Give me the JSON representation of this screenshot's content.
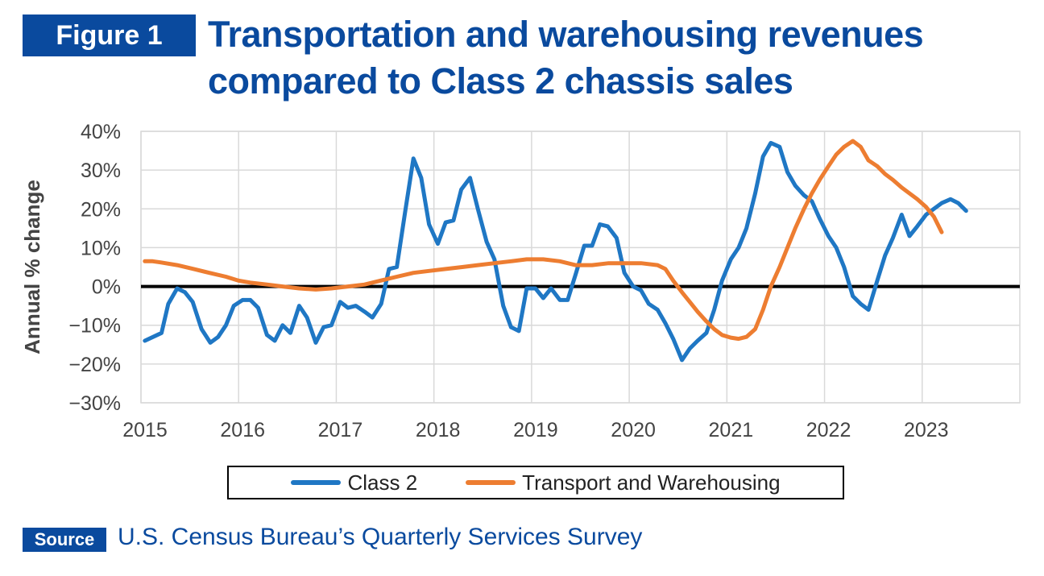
{
  "figure_label": "Figure 1",
  "title_line1": "Transportation and warehousing revenues",
  "title_line2": "compared to Class 2 chassis sales",
  "source_label": "Source",
  "source_text": "U.S. Census Bureau’s Quarterly Services Survey",
  "colors": {
    "brand": "#0a4a9e",
    "class2": "#1f77c4",
    "transport": "#ed7d31",
    "zero_line": "#000000",
    "grid": "#d9d9d9"
  },
  "chart_data": {
    "type": "line",
    "title": "",
    "xlabel": "",
    "ylabel": "Annual % change",
    "xlim": [
      2015,
      2024
    ],
    "ylim": [
      -30,
      40
    ],
    "y_ticks": [
      40,
      30,
      20,
      10,
      0,
      -10,
      -20,
      -30
    ],
    "y_tick_labels": [
      "40%",
      "30%",
      "20%",
      "10%",
      "0%",
      "−10%",
      "−20%",
      "−30%"
    ],
    "x_ticks": [
      2015,
      2016,
      2017,
      2018,
      2019,
      2020,
      2021,
      2022,
      2023
    ],
    "x_tick_labels": [
      "2015",
      "2016",
      "2017",
      "2018",
      "2019",
      "2020",
      "2021",
      "2022",
      "2023"
    ],
    "grid": true,
    "legend_position": "bottom",
    "series": [
      {
        "name": "Class 2",
        "color": "#1f77c4",
        "points": [
          [
            2015.04,
            -14
          ],
          [
            2015.21,
            -12
          ],
          [
            2015.28,
            -4.5
          ],
          [
            2015.37,
            -0.5
          ],
          [
            2015.45,
            -1.5
          ],
          [
            2015.53,
            -4
          ],
          [
            2015.62,
            -11
          ],
          [
            2015.71,
            -14.5
          ],
          [
            2015.79,
            -13
          ],
          [
            2015.87,
            -10
          ],
          [
            2015.95,
            -5
          ],
          [
            2016.04,
            -3.5
          ],
          [
            2016.12,
            -3.5
          ],
          [
            2016.2,
            -5.5
          ],
          [
            2016.29,
            -12.5
          ],
          [
            2016.37,
            -14
          ],
          [
            2016.45,
            -10
          ],
          [
            2016.53,
            -12
          ],
          [
            2016.62,
            -5
          ],
          [
            2016.7,
            -8
          ],
          [
            2016.79,
            -14.5
          ],
          [
            2016.87,
            -10.5
          ],
          [
            2016.95,
            -10
          ],
          [
            2017.04,
            -4
          ],
          [
            2017.12,
            -5.5
          ],
          [
            2017.2,
            -5
          ],
          [
            2017.29,
            -6.5
          ],
          [
            2017.37,
            -8
          ],
          [
            2017.46,
            -4.5
          ],
          [
            2017.54,
            4.5
          ],
          [
            2017.62,
            5
          ],
          [
            2017.71,
            20
          ],
          [
            2017.79,
            33
          ],
          [
            2017.87,
            28
          ],
          [
            2017.95,
            16
          ],
          [
            2018.04,
            11
          ],
          [
            2018.12,
            16.5
          ],
          [
            2018.2,
            17
          ],
          [
            2018.28,
            25
          ],
          [
            2018.37,
            28
          ],
          [
            2018.45,
            20
          ],
          [
            2018.54,
            11.5
          ],
          [
            2018.62,
            7
          ],
          [
            2018.71,
            -5
          ],
          [
            2018.79,
            -10.5
          ],
          [
            2018.87,
            -11.5
          ],
          [
            2018.95,
            -0.5
          ],
          [
            2019.04,
            -0.5
          ],
          [
            2019.12,
            -3
          ],
          [
            2019.2,
            -0.5
          ],
          [
            2019.29,
            -3.5
          ],
          [
            2019.37,
            -3.5
          ],
          [
            2019.45,
            3
          ],
          [
            2019.54,
            10.5
          ],
          [
            2019.62,
            10.5
          ],
          [
            2019.7,
            16
          ],
          [
            2019.78,
            15.5
          ],
          [
            2019.87,
            12.5
          ],
          [
            2019.95,
            3.5
          ],
          [
            2020.04,
            0
          ],
          [
            2020.12,
            -1
          ],
          [
            2020.2,
            -4.5
          ],
          [
            2020.29,
            -6
          ],
          [
            2020.37,
            -9.5
          ],
          [
            2020.45,
            -13.5
          ],
          [
            2020.54,
            -19
          ],
          [
            2020.62,
            -16
          ],
          [
            2020.7,
            -14
          ],
          [
            2020.79,
            -12
          ],
          [
            2020.87,
            -6
          ],
          [
            2020.95,
            1.5
          ],
          [
            2021.04,
            7
          ],
          [
            2021.12,
            10
          ],
          [
            2021.2,
            15
          ],
          [
            2021.29,
            24
          ],
          [
            2021.37,
            33.5
          ],
          [
            2021.45,
            37
          ],
          [
            2021.54,
            36
          ],
          [
            2021.62,
            29.5
          ],
          [
            2021.7,
            26
          ],
          [
            2021.79,
            23.5
          ],
          [
            2021.87,
            22
          ],
          [
            2021.95,
            17.5
          ],
          [
            2022.04,
            13
          ],
          [
            2022.12,
            10
          ],
          [
            2022.2,
            5
          ],
          [
            2022.29,
            -2.5
          ],
          [
            2022.37,
            -4.5
          ],
          [
            2022.45,
            -6
          ],
          [
            2022.54,
            1.5
          ],
          [
            2022.62,
            8
          ],
          [
            2022.7,
            12.5
          ],
          [
            2022.79,
            18.5
          ],
          [
            2022.87,
            13
          ],
          [
            2022.95,
            15.5
          ],
          [
            2023.04,
            18.5
          ],
          [
            2023.12,
            20
          ],
          [
            2023.2,
            21.5
          ],
          [
            2023.29,
            22.5
          ],
          [
            2023.37,
            21.5
          ],
          [
            2023.45,
            19.5
          ]
        ]
      },
      {
        "name": "Transport and Warehousing",
        "color": "#ed7d31",
        "points": [
          [
            2015.04,
            6.5
          ],
          [
            2015.12,
            6.5
          ],
          [
            2015.2,
            6.2
          ],
          [
            2015.37,
            5.5
          ],
          [
            2015.54,
            4.5
          ],
          [
            2015.7,
            3.5
          ],
          [
            2015.87,
            2.5
          ],
          [
            2016.0,
            1.5
          ],
          [
            2016.12,
            1
          ],
          [
            2016.29,
            0.5
          ],
          [
            2016.45,
            0
          ],
          [
            2016.62,
            -0.5
          ],
          [
            2016.79,
            -0.8
          ],
          [
            2016.95,
            -0.5
          ],
          [
            2017.12,
            0
          ],
          [
            2017.29,
            0.5
          ],
          [
            2017.45,
            1.5
          ],
          [
            2017.62,
            2.5
          ],
          [
            2017.79,
            3.5
          ],
          [
            2017.95,
            4
          ],
          [
            2018.12,
            4.5
          ],
          [
            2018.29,
            5
          ],
          [
            2018.45,
            5.5
          ],
          [
            2018.62,
            6
          ],
          [
            2018.79,
            6.5
          ],
          [
            2018.95,
            7
          ],
          [
            2019.04,
            7
          ],
          [
            2019.12,
            7
          ],
          [
            2019.29,
            6.5
          ],
          [
            2019.45,
            5.5
          ],
          [
            2019.62,
            5.5
          ],
          [
            2019.79,
            6
          ],
          [
            2019.95,
            6
          ],
          [
            2020.12,
            6
          ],
          [
            2020.29,
            5.5
          ],
          [
            2020.37,
            4.5
          ],
          [
            2020.45,
            1.5
          ],
          [
            2020.54,
            -1.5
          ],
          [
            2020.62,
            -4
          ],
          [
            2020.7,
            -6.5
          ],
          [
            2020.79,
            -9
          ],
          [
            2020.87,
            -11
          ],
          [
            2020.95,
            -12.5
          ],
          [
            2021.04,
            -13.2
          ],
          [
            2021.12,
            -13.5
          ],
          [
            2021.2,
            -13
          ],
          [
            2021.29,
            -11
          ],
          [
            2021.37,
            -6
          ],
          [
            2021.45,
            0
          ],
          [
            2021.54,
            5
          ],
          [
            2021.62,
            10
          ],
          [
            2021.7,
            15
          ],
          [
            2021.79,
            20
          ],
          [
            2021.87,
            24
          ],
          [
            2021.95,
            27.5
          ],
          [
            2022.04,
            31
          ],
          [
            2022.12,
            34
          ],
          [
            2022.2,
            36
          ],
          [
            2022.29,
            37.5
          ],
          [
            2022.37,
            36
          ],
          [
            2022.45,
            32.5
          ],
          [
            2022.54,
            31
          ],
          [
            2022.62,
            29
          ],
          [
            2022.7,
            27.5
          ],
          [
            2022.79,
            25.5
          ],
          [
            2022.87,
            24
          ],
          [
            2022.95,
            22.5
          ],
          [
            2023.04,
            20.5
          ],
          [
            2023.12,
            18
          ],
          [
            2023.2,
            14
          ]
        ]
      }
    ]
  }
}
